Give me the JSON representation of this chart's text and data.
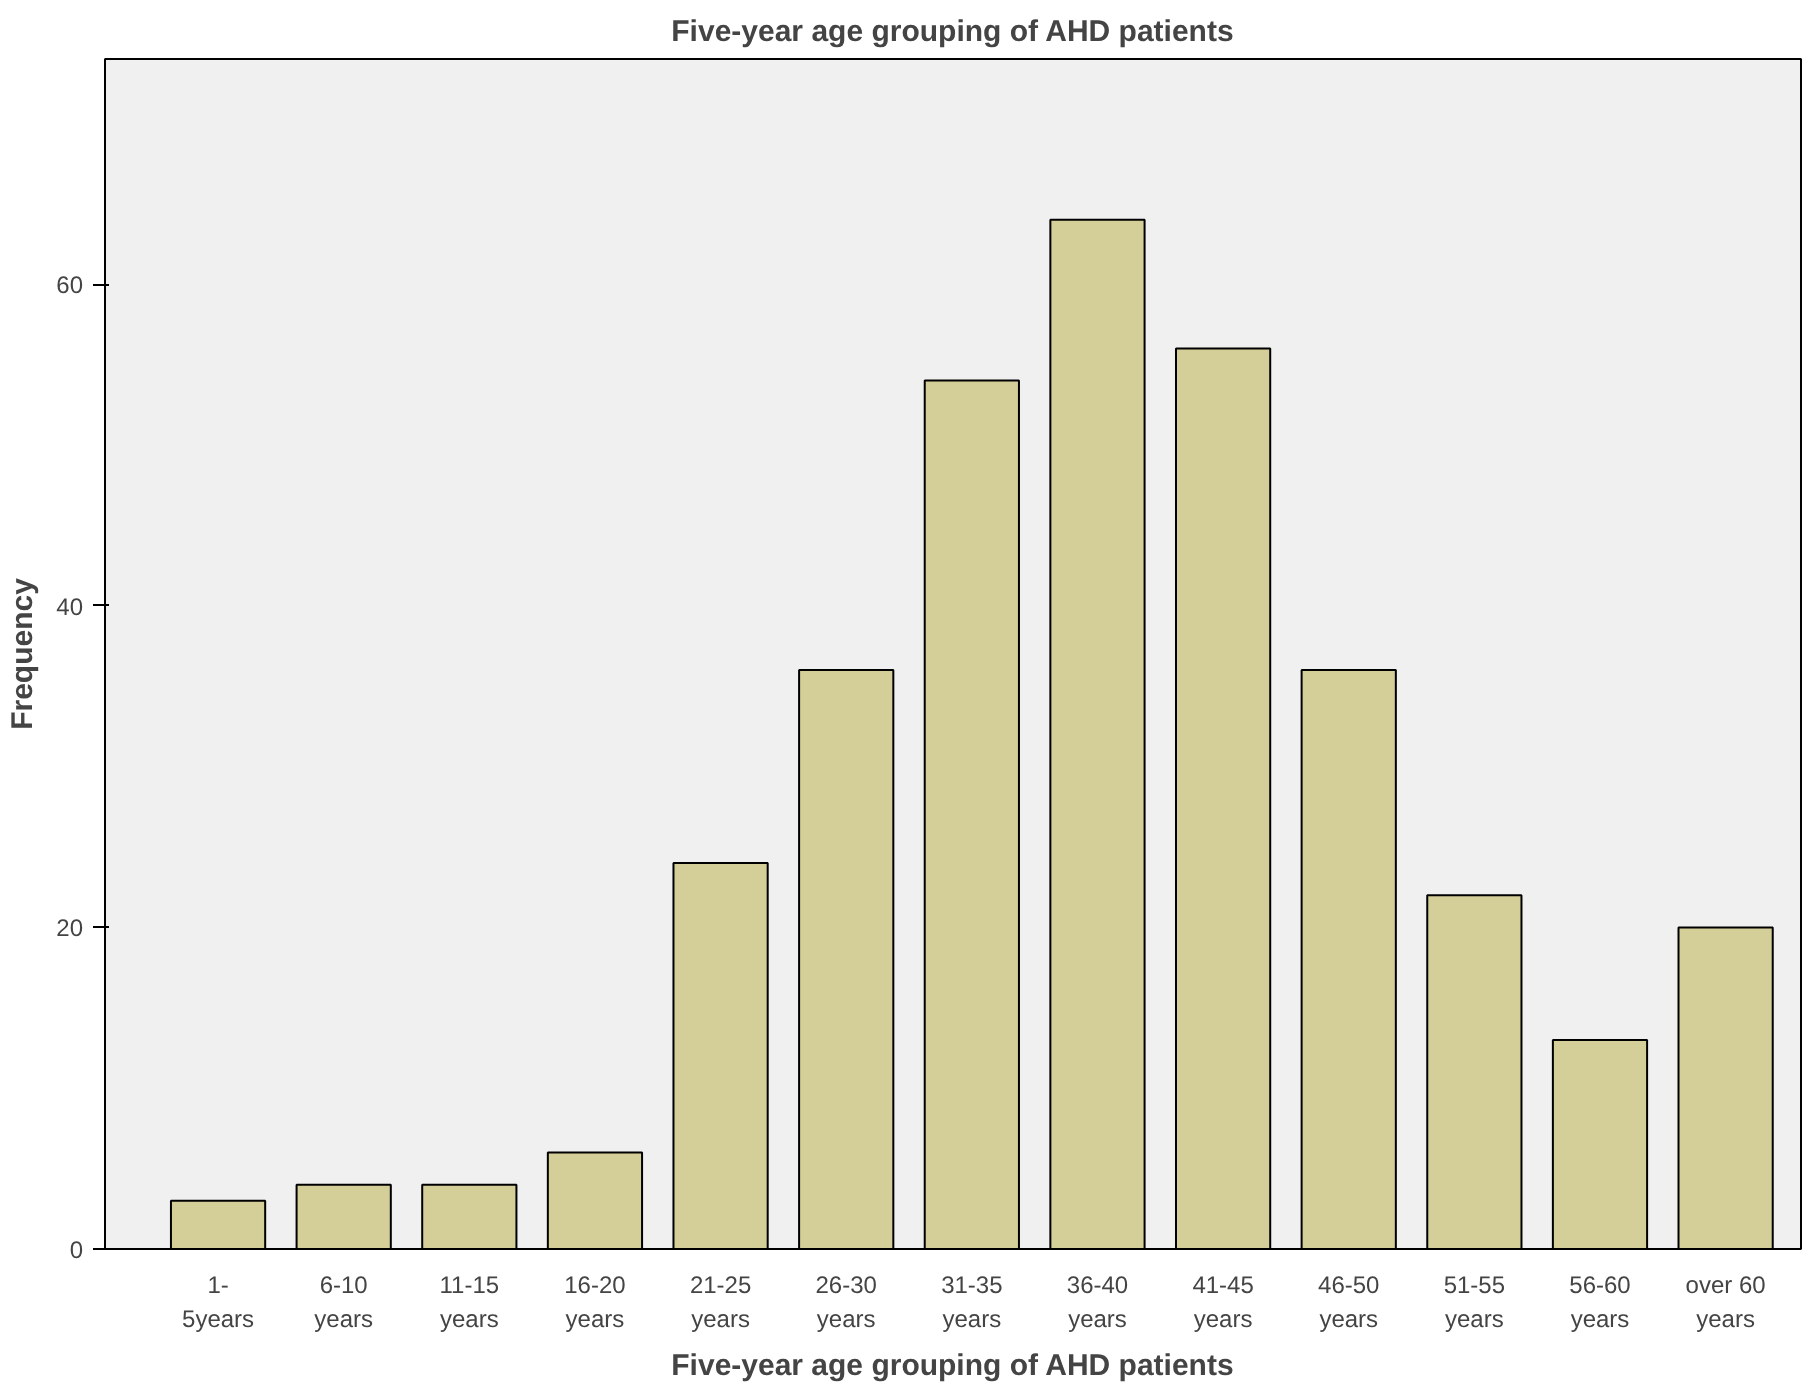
{
  "chart_data": {
    "type": "bar",
    "title": "Five-year age grouping of AHD patients",
    "xlabel": "Five-year age grouping of AHD patients",
    "ylabel": "Frequency",
    "categories": [
      "1- 5years",
      "6-10 years",
      "11-15 years",
      "16-20 years",
      "21-25 years",
      "26-30 years",
      "31-35 years",
      "36-40 years",
      "41-45 years",
      "46-50 years",
      "51-55 years",
      "56-60 years",
      "over 60 years"
    ],
    "values": [
      3,
      4,
      4,
      6,
      24,
      36,
      54,
      64,
      56,
      36,
      22,
      13,
      20
    ],
    "color": "#d4ce98",
    "ylim": [
      0,
      74
    ],
    "yticks": [
      0,
      20,
      40,
      60
    ],
    "grid": false
  }
}
